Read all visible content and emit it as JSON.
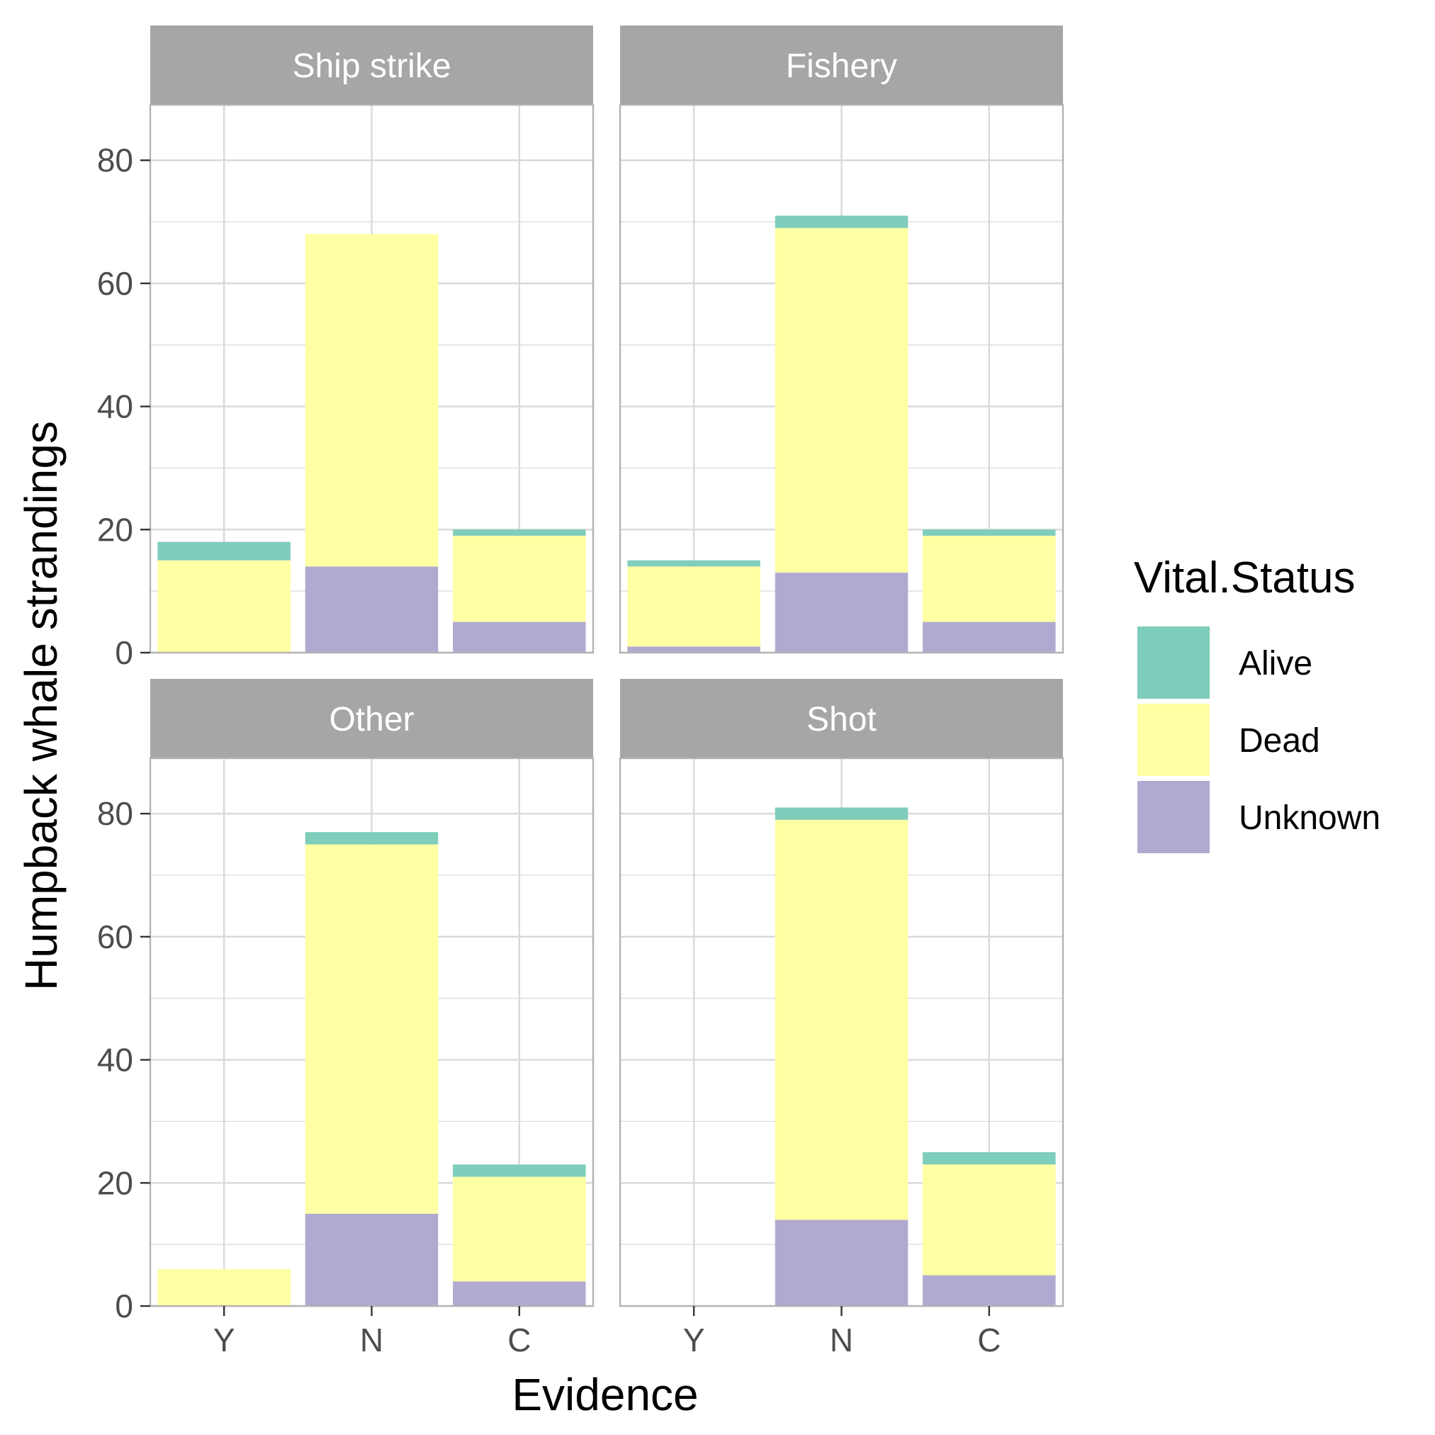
{
  "chart_data": {
    "type": "bar",
    "stacked": true,
    "xlabel": "Evidence",
    "ylabel": "Humpback whale strandings",
    "ylim": [
      0,
      89
    ],
    "y_ticks": [
      0,
      20,
      40,
      60,
      80
    ],
    "grid": true,
    "categories": [
      "Y",
      "N",
      "C"
    ],
    "legend": {
      "title": "Vital.Status",
      "position": "right",
      "items": [
        "Alive",
        "Dead",
        "Unknown"
      ]
    },
    "colors": {
      "Alive": "#7fcdbb",
      "Dead": "#ffffa3",
      "Unknown": "#b0aad1",
      "strip": "#a6a6a6",
      "grid": "#d9d9d9",
      "panel_border": "#b3b3b3"
    },
    "panels": [
      {
        "title": "Ship strike",
        "series": [
          {
            "name": "Unknown",
            "values": [
              0,
              14,
              5
            ]
          },
          {
            "name": "Dead",
            "values": [
              15,
              54,
              14
            ]
          },
          {
            "name": "Alive",
            "values": [
              3,
              0,
              1
            ]
          }
        ]
      },
      {
        "title": "Fishery",
        "series": [
          {
            "name": "Unknown",
            "values": [
              1,
              13,
              5
            ]
          },
          {
            "name": "Dead",
            "values": [
              13,
              56,
              14
            ]
          },
          {
            "name": "Alive",
            "values": [
              1,
              2,
              1
            ]
          }
        ]
      },
      {
        "title": "Other",
        "series": [
          {
            "name": "Unknown",
            "values": [
              0,
              15,
              4
            ]
          },
          {
            "name": "Dead",
            "values": [
              6,
              60,
              17
            ]
          },
          {
            "name": "Alive",
            "values": [
              0,
              2,
              2
            ]
          }
        ]
      },
      {
        "title": "Shot",
        "series": [
          {
            "name": "Unknown",
            "values": [
              0,
              14,
              5
            ]
          },
          {
            "name": "Dead",
            "values": [
              0,
              65,
              18
            ]
          },
          {
            "name": "Alive",
            "values": [
              0,
              2,
              2
            ]
          }
        ]
      }
    ]
  }
}
